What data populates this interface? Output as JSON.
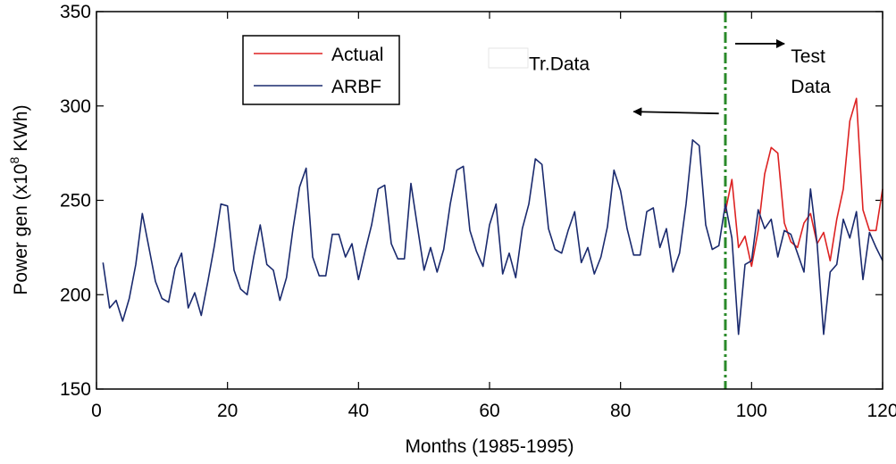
{
  "chart_data": {
    "type": "line",
    "title": "",
    "xlabel": "Months (1985-1995)",
    "ylabel_prefix": "Power gen (x10",
    "ylabel_exponent": "8",
    "ylabel_suffix": " KWh)",
    "xlim": [
      0,
      120
    ],
    "ylim": [
      150,
      350
    ],
    "xticks": [
      0,
      20,
      40,
      60,
      80,
      100,
      120
    ],
    "yticks": [
      150,
      200,
      250,
      300,
      350
    ],
    "xtick_labels": [
      "0",
      "20",
      "40",
      "60",
      "80",
      "100",
      "120"
    ],
    "ytick_labels": [
      "150",
      "200",
      "250",
      "300",
      "350"
    ],
    "grid": false,
    "legend_placement": "top-left",
    "split_x": 96,
    "series": [
      {
        "name": "Actual",
        "color": "#dd2222",
        "x": [
          96,
          97,
          98,
          99,
          100,
          101,
          102,
          103,
          104,
          105,
          106,
          107,
          108,
          109,
          110,
          111,
          112,
          113,
          114,
          115,
          116,
          117,
          118,
          119,
          120
        ],
        "y": [
          244,
          261,
          225,
          231,
          215,
          234,
          264,
          278,
          275,
          238,
          228,
          225,
          238,
          243,
          227,
          233,
          218,
          240,
          256,
          292,
          304,
          245,
          234,
          234,
          256
        ]
      },
      {
        "name": "ARBF",
        "color": "#1a2a6e",
        "x": [
          1,
          2,
          3,
          4,
          5,
          6,
          7,
          8,
          9,
          10,
          11,
          12,
          13,
          14,
          15,
          16,
          17,
          18,
          19,
          20,
          21,
          22,
          23,
          24,
          25,
          26,
          27,
          28,
          29,
          30,
          31,
          32,
          33,
          34,
          35,
          36,
          37,
          38,
          39,
          40,
          41,
          42,
          43,
          44,
          45,
          46,
          47,
          48,
          49,
          50,
          51,
          52,
          53,
          54,
          55,
          56,
          57,
          58,
          59,
          60,
          61,
          62,
          63,
          64,
          65,
          66,
          67,
          68,
          69,
          70,
          71,
          72,
          73,
          74,
          75,
          76,
          77,
          78,
          79,
          80,
          81,
          82,
          83,
          84,
          85,
          86,
          87,
          88,
          89,
          90,
          91,
          92,
          93,
          94,
          95,
          96,
          97,
          98,
          99,
          100,
          101,
          102,
          103,
          104,
          105,
          106,
          107,
          108,
          109,
          110,
          111,
          112,
          113,
          114,
          115,
          116,
          117,
          118,
          119,
          120
        ],
        "y": [
          217,
          193,
          197,
          186,
          198,
          216,
          243,
          225,
          207,
          198,
          196,
          214,
          222,
          193,
          201,
          189,
          207,
          226,
          248,
          247,
          213,
          203,
          200,
          220,
          237,
          216,
          213,
          197,
          209,
          235,
          257,
          267,
          220,
          210,
          210,
          232,
          232,
          220,
          227,
          208,
          223,
          237,
          256,
          258,
          227,
          219,
          219,
          259,
          236,
          213,
          225,
          212,
          224,
          248,
          266,
          268,
          234,
          223,
          215,
          237,
          248,
          211,
          222,
          209,
          235,
          248,
          272,
          269,
          235,
          224,
          222,
          234,
          244,
          217,
          225,
          211,
          220,
          236,
          266,
          255,
          235,
          221,
          221,
          244,
          246,
          225,
          235,
          212,
          222,
          248,
          282,
          279,
          237,
          224,
          226,
          248,
          230,
          179,
          216,
          218,
          245,
          235,
          240,
          220,
          234,
          232,
          222,
          212,
          256,
          227,
          179,
          212,
          216,
          240,
          230,
          244,
          208,
          233,
          225,
          218
        ]
      }
    ],
    "annotations": [
      {
        "text": "Tr.Data",
        "x": 66,
        "y": 319,
        "arrow": {
          "from_x": 95,
          "from_y": 296,
          "to_x": 82,
          "to_y": 297
        }
      },
      {
        "text": "Test",
        "x": 106,
        "y": 323,
        "arrow": {
          "from_x": 97.5,
          "from_y": 333,
          "to_x": 105,
          "to_y": 333
        }
      },
      {
        "text": "Data",
        "x": 106,
        "y": 307
      }
    ]
  }
}
